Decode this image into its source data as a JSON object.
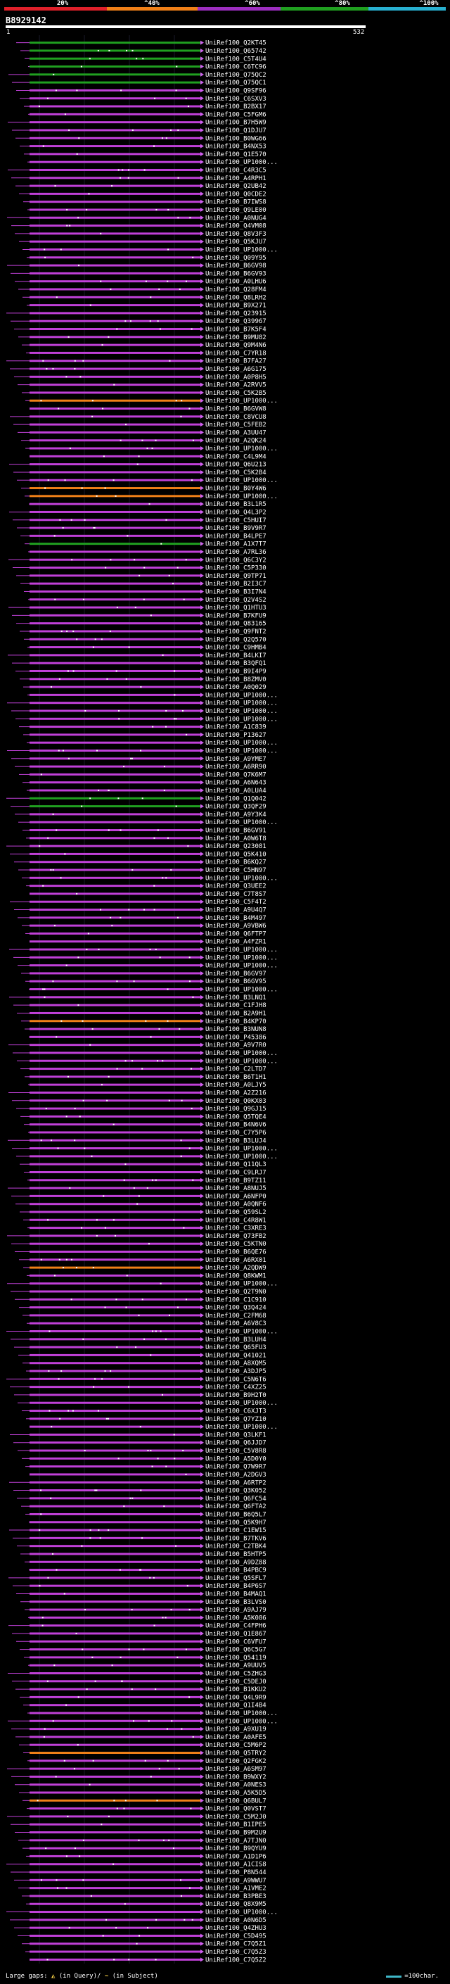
{
  "identity_scale": {
    "labels": [
      "20%",
      "^40%",
      "^60%",
      "^80%",
      "^100%"
    ],
    "colors": [
      "#e0202a",
      "#f08018",
      "#9d2ec0",
      "#20a020",
      "#28b0d0"
    ]
  },
  "query": {
    "id": "B8929142",
    "start": "1",
    "end": "532",
    "length": 532
  },
  "hits": [
    "UniRef100_Q2KT45",
    "UniRef100_Q65742",
    "UniRef100_C5T4U4",
    "UniRef100_C6TC96",
    "UniRef100_Q75QC2",
    "UniRef100_Q75QC1",
    "UniRef100_Q9SF96",
    "UniRef100_C6SXV3",
    "UniRef100_B2BX17",
    "UniRef100_C5FGM6",
    "UniRef100_B7H5W9",
    "UniRef100_Q1DJU7",
    "UniRef100_B0WG66",
    "UniRef100_B4NX53",
    "UniRef100_Q1E570",
    "UniRef100_UP1000...",
    "UniRef100_C4R3C5",
    "UniRef100_A4RPH1",
    "UniRef100_Q2UB42",
    "UniRef100_Q0CDE2",
    "UniRef100_B7IWS8",
    "UniRef100_Q9LE00",
    "UniRef100_A0NUG4",
    "UniRef100_Q4VM08",
    "UniRef100_Q8V3F3",
    "UniRef100_Q5KJU7",
    "UniRef100_UP1000...",
    "UniRef100_Q09Y95",
    "UniRef100_B6GV98",
    "UniRef100_B6GV93",
    "UniRef100_A0LHU6",
    "UniRef100_Q28FM4",
    "UniRef100_Q8LRH2",
    "UniRef100_B9X271",
    "UniRef100_Q23915",
    "UniRef100_Q39967",
    "UniRef100_B7K5F4",
    "UniRef100_B9MU82",
    "UniRef100_Q9M4N6",
    "UniRef100_C7YR18",
    "UniRef100_B7FA27",
    "UniRef100_A6G175",
    "UniRef100_A0P8H5",
    "UniRef100_A2RVV5",
    "UniRef100_C5K2B5",
    "UniRef100_UP1000...",
    "UniRef100_B6GVW8",
    "UniRef100_C8VCU8",
    "UniRef100_C5FEB2",
    "UniRef100_A3UU47",
    "UniRef100_A2QK24",
    "UniRef100_UP1000...",
    "UniRef100_C4L9M4",
    "UniRef100_Q6U213",
    "UniRef100_C5K2B4",
    "UniRef100_UP1000...",
    "UniRef100_B0Y4W6",
    "UniRef100_UP1000...",
    "UniRef100_B3L1R5",
    "UniRef100_Q4L3P2",
    "UniRef100_C5HUI7",
    "UniRef100_B9V9R7",
    "UniRef100_B4LPE7",
    "UniRef100_A1X7T7",
    "UniRef100_A7RL36",
    "UniRef100_Q6C3Y2",
    "UniRef100_C5P330",
    "UniRef100_Q9TP71",
    "UniRef100_B2I3C7",
    "UniRef100_B3I7N4",
    "UniRef100_Q2V4S2",
    "UniRef100_Q1HTU3",
    "UniRef100_B7KFU9",
    "UniRef100_Q83165",
    "UniRef100_Q9FNT2",
    "UniRef100_Q2Q570",
    "UniRef100_C9HMB4",
    "UniRef100_B4LKI7",
    "UniRef100_B3QFQ1",
    "UniRef100_B9I4P9",
    "UniRef100_B8ZMV0",
    "UniRef100_A0Q029",
    "UniRef100_UP1000...",
    "UniRef100_UP1000...",
    "UniRef100_UP1000...",
    "UniRef100_UP1000...",
    "UniRef100_A1C839",
    "UniRef100_P13627",
    "UniRef100_UP1000...",
    "UniRef100_UP1000...",
    "UniRef100_A9YME7",
    "UniRef100_A6RR90",
    "UniRef100_Q7K6M7",
    "UniRef100_A6N643",
    "UniRef100_A0LUA4",
    "UniRef100_Q1Q042",
    "UniRef100_Q3QF29",
    "UniRef100_A9Y3K4",
    "UniRef100_UP1000...",
    "UniRef100_B6GV91",
    "UniRef100_A0W6T8",
    "UniRef100_Q23081",
    "UniRef100_Q5K410",
    "UniRef100_B6KQ27",
    "UniRef100_C5HN97",
    "UniRef100_UP1000...",
    "UniRef100_Q3UEE2",
    "UniRef100_C7T8S7",
    "UniRef100_C5F4T2",
    "UniRef100_A9U4Q7",
    "UniRef100_B4M497",
    "UniRef100_A9VBW6",
    "UniRef100_Q6FTP7",
    "UniRef100_A4FZR1",
    "UniRef100_UP1000...",
    "UniRef100_UP1000...",
    "UniRef100_UP1000...",
    "UniRef100_B6GV97",
    "UniRef100_B6GV95",
    "UniRef100_UP1000...",
    "UniRef100_B3LNQ1",
    "UniRef100_C1FJH8",
    "UniRef100_B2A9H1",
    "UniRef100_B4KP70",
    "UniRef100_B3NUN8",
    "UniRef100_P45386",
    "UniRef100_A9V7R0",
    "UniRef100_UP1000...",
    "UniRef100_UP1000...",
    "UniRef100_C2LTD7",
    "UniRef100_B6T1H1",
    "UniRef100_A0LJY5",
    "UniRef100_A2Z216",
    "UniRef100_Q0KX03",
    "UniRef100_Q9GJ15",
    "UniRef100_Q5TQE4",
    "UniRef100_B4N6V6",
    "UniRef100_C7Y5P6",
    "UniRef100_B3LUJ4",
    "UniRef100_UP1000...",
    "UniRef100_UP1000...",
    "UniRef100_Q11QL3",
    "UniRef100_C9LRJ7",
    "UniRef100_B9TZ11",
    "UniRef100_A8NUJ5",
    "UniRef100_A6NFP0",
    "UniRef100_A0QNF6",
    "UniRef100_Q59SL2",
    "UniRef100_C4R8W1",
    "UniRef100_C3XRE3",
    "UniRef100_Q73FB2",
    "UniRef100_C5KTN0",
    "UniRef100_B6QE76",
    "UniRef100_A6RX01",
    "UniRef100_A2QDW9",
    "UniRef100_Q8KWM1",
    "UniRef100_UP1000...",
    "UniRef100_Q2T9N0",
    "UniRef100_C1C910",
    "UniRef100_Q3Q424",
    "UniRef100_C2FM68",
    "UniRef100_A6V8C3",
    "UniRef100_UP1000...",
    "UniRef100_B3LUH4",
    "UniRef100_Q65FU3",
    "UniRef100_Q41021",
    "UniRef100_A8XQM5",
    "UniRef100_A3DJP5",
    "UniRef100_C5N6T6",
    "UniRef100_C4XZ25",
    "UniRef100_B9H2T0",
    "UniRef100_UP1000...",
    "UniRef100_C6XJT3",
    "UniRef100_Q7YZ10",
    "UniRef100_UP1000...",
    "UniRef100_Q3LKF1",
    "UniRef100_Q6JJD7",
    "UniRef100_C5V8R8",
    "UniRef100_A5D0Y0",
    "UniRef100_Q7W9R7",
    "UniRef100_A2DGV3",
    "UniRef100_A6RTP2",
    "UniRef100_Q3K052",
    "UniRef100_Q6FC54",
    "UniRef100_Q6FTA2",
    "UniRef100_B6Q5L7",
    "UniRef100_Q5K9H7",
    "UniRef100_C1EW15",
    "UniRef100_B7TKV6",
    "UniRef100_C2TBK4",
    "UniRef100_B5HTP5",
    "UniRef100_A9DZ88",
    "UniRef100_B4PBC9",
    "UniRef100_Q5SFL7",
    "UniRef100_B4P6S7",
    "UniRef100_B4MAQ1",
    "UniRef100_B3LVS0",
    "UniRef100_A9AJ79",
    "UniRef100_A5K086",
    "UniRef100_C4FPH6",
    "UniRef100_Q1E867",
    "UniRef100_C6VFU7",
    "UniRef100_Q6C5G7",
    "UniRef100_Q54119",
    "UniRef100_A9UUV5",
    "UniRef100_C5ZHG3",
    "UniRef100_C5DEJ0",
    "UniRef100_B1KKU2",
    "UniRef100_Q4L9R9",
    "UniRef100_Q1I4B4",
    "UniRef100_UP1000...",
    "UniRef100_UP1000...",
    "UniRef100_A9XU19",
    "UniRef100_A0AFE5",
    "UniRef100_C5M6P2",
    "UniRef100_Q5TRY2",
    "UniRef100_Q2FGK2",
    "UniRef100_A6SM97",
    "UniRef100_B9WXY2",
    "UniRef100_A0NES3",
    "UniRef100_A5K5D5",
    "UniRef100_Q6BUL7",
    "UniRef100_Q0VST7",
    "UniRef100_C5M2J0",
    "UniRef100_B1IPE5",
    "UniRef100_B9M2U9",
    "UniRef100_A7TJN0",
    "UniRef100_B9QYU9",
    "UniRef100_A1D1P6",
    "UniRef100_A1CIS8",
    "UniRef100_P8N544",
    "UniRef100_A9WWU7",
    "UniRef100_A1VME2",
    "UniRef100_B3PBE3",
    "UniRef100_Q8X9M5",
    "UniRef100_UP1000...",
    "UniRef100_A0N6D5",
    "UniRef100_Q4ZHU3",
    "UniRef100_C5D495",
    "UniRef100_C7Q5Z1",
    "UniRef100_C7Q5Z3",
    "UniRef100_C7Q5Z2"
  ],
  "hit_identity_class": {
    "green": [
      0,
      1,
      2,
      3,
      4,
      5,
      63,
      95,
      96
    ],
    "orange": [
      45,
      56,
      57,
      123,
      154,
      215,
      221
    ]
  },
  "legend": {
    "large_gaps_label": "Large gaps:",
    "in_query_glyph": "◭",
    "in_query_text": "(in Query)/",
    "in_subject_glyph": "~",
    "in_subject_text": "(in Subject)",
    "scale_text": "=100char."
  }
}
